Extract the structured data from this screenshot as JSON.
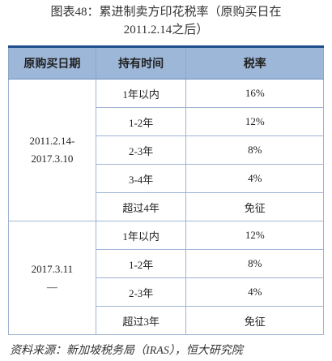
{
  "title": [
    "图表48：累进制卖方印花税率（原购买日在",
    "2011.2.14之后）"
  ],
  "table": {
    "header": [
      "原购买日期",
      "持有时间",
      "税率"
    ],
    "groups": [
      {
        "period": [
          "2011.2.14-",
          "2017.3.10"
        ],
        "rows": [
          [
            "1年以内",
            "16%"
          ],
          [
            "1-2年",
            "12%"
          ],
          [
            "2-3年",
            "8%"
          ],
          [
            "3-4年",
            "4%"
          ],
          [
            "超过4年",
            "免征"
          ]
        ]
      },
      {
        "period": [
          "2017.3.11",
          "—"
        ],
        "rows": [
          [
            "1年以内",
            "12%"
          ],
          [
            "1-2年",
            "8%"
          ],
          [
            "2-3年",
            "4%"
          ],
          [
            "超过3年",
            "免征"
          ]
        ]
      }
    ]
  },
  "source": "资料来源：新加坡税务局（IRAS），恒大研究院"
}
